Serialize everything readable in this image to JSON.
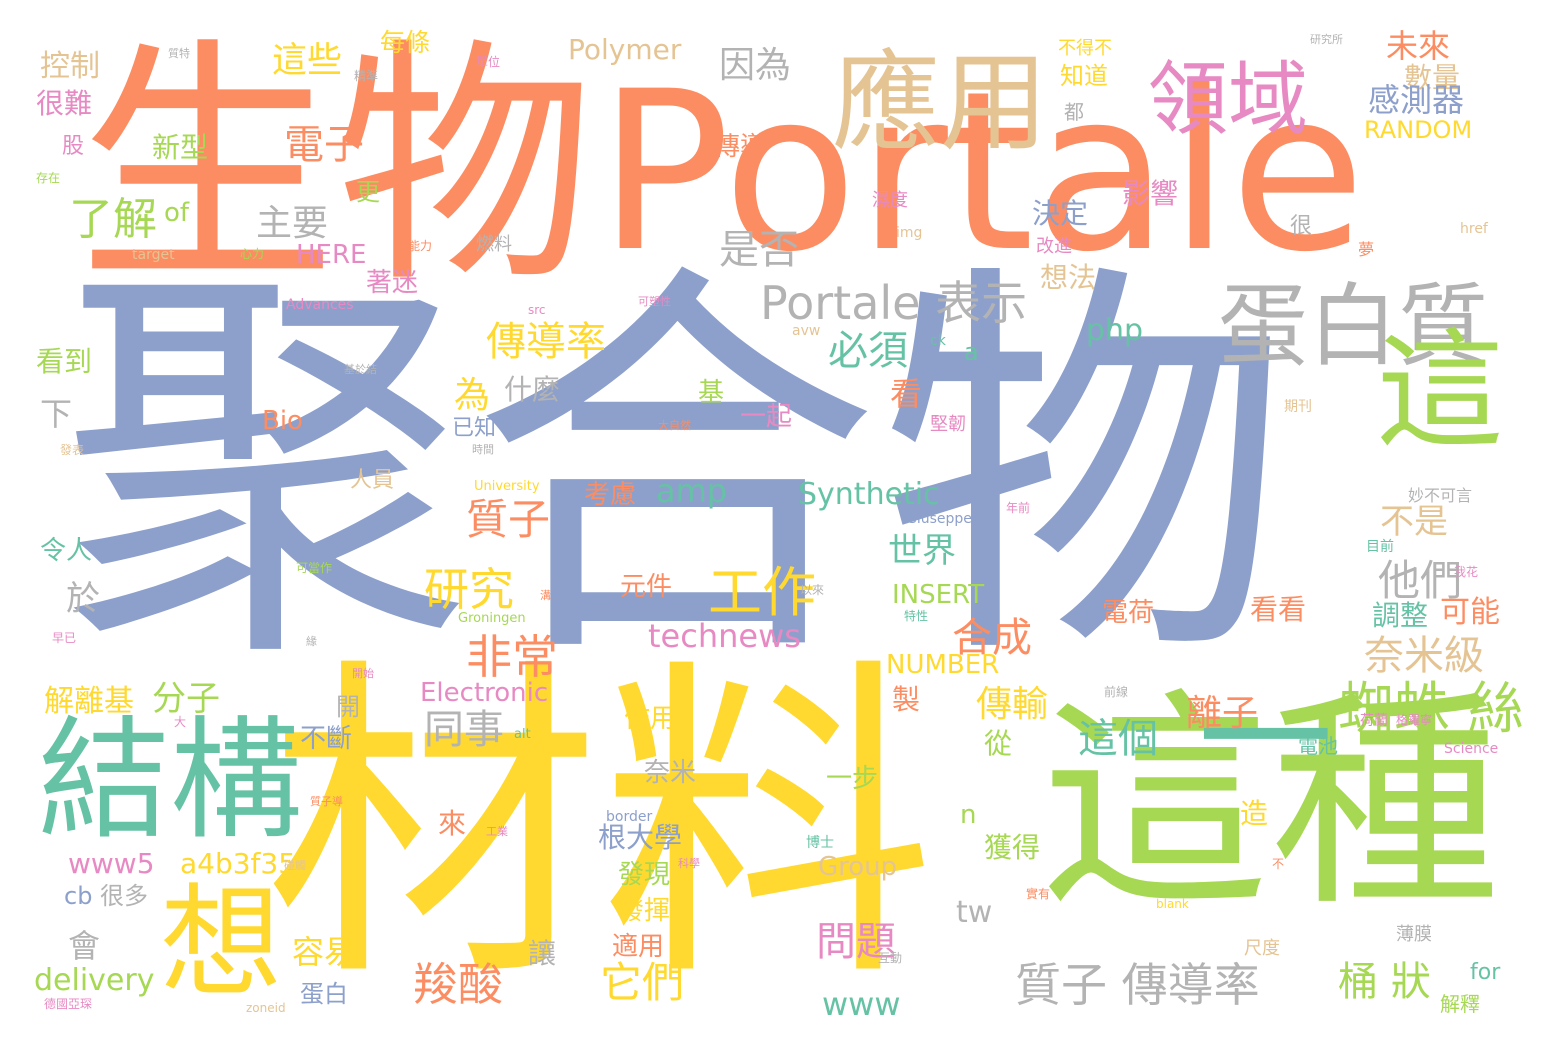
{
  "palette": {
    "orange": "#fc8d62",
    "blue": "#8da0cb",
    "yellow": "#ffd92f",
    "green": "#66c2a5",
    "lime": "#a6d854",
    "pink": "#e78ac3",
    "tan": "#e5c494",
    "gray": "#b3b3b3"
  },
  "words": [
    {
      "text": "聚合物",
      "color": "#8da0cb"
    },
    {
      "text": "生物",
      "color": "#fc8d62"
    },
    {
      "text": "Portale",
      "color": "#fc8d62"
    },
    {
      "text": "材料",
      "color": "#ffd92f"
    },
    {
      "text": "這種",
      "color": "#a6d854"
    },
    {
      "text": "結構",
      "color": "#66c2a5"
    },
    {
      "text": "應用",
      "color": "#e5c494"
    },
    {
      "text": "領域",
      "color": "#e78ac3"
    },
    {
      "text": "蛋白質",
      "color": "#b3b3b3"
    },
    {
      "text": "這",
      "color": "#a6d854"
    },
    {
      "text": "想",
      "color": "#ffd92f"
    },
    {
      "text": "一",
      "color": "#66c2a5"
    },
    {
      "text": "Portale 表示",
      "color": "#b3b3b3"
    },
    {
      "text": "質子 傳導率",
      "color": "#b3b3b3"
    },
    {
      "text": "蜘蛛 絲",
      "color": "#a6d854"
    },
    {
      "text": "工作",
      "color": "#ffd92f"
    },
    {
      "text": "研究",
      "color": "#ffd92f"
    },
    {
      "text": "非常",
      "color": "#fc8d62"
    },
    {
      "text": "羧酸",
      "color": "#fc8d62"
    },
    {
      "text": "了解",
      "color": "#a6d854"
    },
    {
      "text": "電子",
      "color": "#fc8d62"
    },
    {
      "text": "主要",
      "color": "#b3b3b3"
    },
    {
      "text": "這些",
      "color": "#ffd92f"
    },
    {
      "text": "控制",
      "color": "#e5c494"
    },
    {
      "text": "每條",
      "color": "#ffd92f"
    },
    {
      "text": "Polymer",
      "color": "#e5c494"
    },
    {
      "text": "因為",
      "color": "#b3b3b3"
    },
    {
      "text": "未來",
      "color": "#fc8d62"
    },
    {
      "text": "數量",
      "color": "#e5c494"
    },
    {
      "text": "感測器",
      "color": "#8da0cb"
    },
    {
      "text": "RANDOM",
      "color": "#ffd92f"
    },
    {
      "text": "是否",
      "color": "#b3b3b3"
    },
    {
      "text": "傳導率",
      "color": "#ffd92f"
    },
    {
      "text": "必須",
      "color": "#66c2a5"
    },
    {
      "text": "php",
      "color": "#66c2a5"
    },
    {
      "text": "amp",
      "color": "#66c2a5"
    },
    {
      "text": "Synthetic",
      "color": "#66c2a5"
    },
    {
      "text": "質子",
      "color": "#fc8d62"
    },
    {
      "text": "世界",
      "color": "#66c2a5"
    },
    {
      "text": "technews",
      "color": "#e78ac3"
    },
    {
      "text": "合成",
      "color": "#fc8d62"
    },
    {
      "text": "他們",
      "color": "#b3b3b3"
    },
    {
      "text": "不是",
      "color": "#e5c494"
    },
    {
      "text": "奈米級",
      "color": "#e5c494"
    },
    {
      "text": "這個",
      "color": "#66c2a5"
    },
    {
      "text": "傳輸",
      "color": "#ffd92f"
    },
    {
      "text": "離子",
      "color": "#fc8d62"
    },
    {
      "text": "問題",
      "color": "#e78ac3"
    },
    {
      "text": "它們",
      "color": "#ffd92f"
    },
    {
      "text": "桶 狀",
      "color": "#a6d854"
    },
    {
      "text": "www",
      "color": "#66c2a5"
    },
    {
      "text": "www5",
      "color": "#e78ac3"
    },
    {
      "text": "a4b3f35b",
      "color": "#ffd92f"
    },
    {
      "text": "delivery",
      "color": "#a6d854"
    },
    {
      "text": "會",
      "color": "#b3b3b3"
    },
    {
      "text": "容易",
      "color": "#ffd92f"
    },
    {
      "text": "同事",
      "color": "#b3b3b3"
    },
    {
      "text": "分子",
      "color": "#a6d854"
    },
    {
      "text": "解離基",
      "color": "#ffd92f"
    },
    {
      "text": "很難",
      "color": "#e78ac3"
    },
    {
      "text": "新型",
      "color": "#a6d854"
    },
    {
      "text": "股",
      "color": "#e78ac3"
    },
    {
      "text": "of",
      "color": "#a6d854"
    },
    {
      "text": "HERE",
      "color": "#e78ac3"
    },
    {
      "text": "著迷",
      "color": "#e78ac3"
    },
    {
      "text": "看到",
      "color": "#a6d854"
    },
    {
      "text": "下",
      "color": "#b3b3b3"
    },
    {
      "text": "為",
      "color": "#ffd92f"
    },
    {
      "text": "什麼",
      "color": "#b3b3b3"
    },
    {
      "text": "Bio",
      "color": "#fc8d62"
    },
    {
      "text": "基",
      "color": "#a6d854"
    },
    {
      "text": "一起",
      "color": "#e78ac3"
    },
    {
      "text": "看",
      "color": "#fc8d62"
    },
    {
      "text": "a",
      "color": "#66c2a5"
    },
    {
      "text": "已知",
      "color": "#8da0cb"
    },
    {
      "text": "決定",
      "color": "#8da0cb"
    },
    {
      "text": "想法",
      "color": "#e5c494"
    },
    {
      "text": "影響",
      "color": "#e78ac3"
    },
    {
      "text": "知道",
      "color": "#ffd92f"
    },
    {
      "text": "傳導",
      "color": "#fc8d62"
    },
    {
      "text": "可能",
      "color": "#fc8d62"
    },
    {
      "text": "調整",
      "color": "#66c2a5"
    },
    {
      "text": "看看",
      "color": "#fc8d62"
    },
    {
      "text": "電荷",
      "color": "#fc8d62"
    },
    {
      "text": "INSERT",
      "color": "#a6d854"
    },
    {
      "text": "NUMBER",
      "color": "#ffd92f"
    },
    {
      "text": "Electronic",
      "color": "#e78ac3"
    },
    {
      "text": "元件",
      "color": "#fc8d62"
    },
    {
      "text": "人員",
      "color": "#e5c494"
    },
    {
      "text": "考慮",
      "color": "#fc8d62"
    },
    {
      "text": "於",
      "color": "#b3b3b3"
    },
    {
      "text": "令人",
      "color": "#66c2a5"
    },
    {
      "text": "作用",
      "color": "#ffd92f"
    },
    {
      "text": "奈米",
      "color": "#b3b3b3"
    },
    {
      "text": "一步",
      "color": "#a6d854"
    },
    {
      "text": "不斷",
      "color": "#8da0cb"
    },
    {
      "text": "開",
      "color": "#b3b3b3"
    },
    {
      "text": "來",
      "color": "#fc8d62"
    },
    {
      "text": "根大學",
      "color": "#8da0cb"
    },
    {
      "text": "發現",
      "color": "#a6d854"
    },
    {
      "text": "發揮",
      "color": "#ffd92f"
    },
    {
      "text": "適用",
      "color": "#fc8d62"
    },
    {
      "text": "Group",
      "color": "#e5c494"
    },
    {
      "text": "製",
      "color": "#fc8d62"
    },
    {
      "text": "從",
      "color": "#a6d854"
    },
    {
      "text": "n",
      "color": "#a6d854"
    },
    {
      "text": "獲得",
      "color": "#a6d854"
    },
    {
      "text": "tw",
      "color": "#b3b3b3"
    },
    {
      "text": "造",
      "color": "#ffd92f"
    },
    {
      "text": "cb",
      "color": "#8da0cb"
    },
    {
      "text": "很多",
      "color": "#b3b3b3"
    },
    {
      "text": "蛋白",
      "color": "#8da0cb"
    },
    {
      "text": "讓",
      "color": "#b3b3b3"
    },
    {
      "text": "for",
      "color": "#66c2a5"
    },
    {
      "text": "解釋",
      "color": "#a6d854"
    },
    {
      "text": "薄膜",
      "color": "#b3b3b3"
    },
    {
      "text": "尺度",
      "color": "#e5c494"
    },
    {
      "text": "更",
      "color": "#a6d854"
    },
    {
      "text": "都",
      "color": "#b3b3b3"
    },
    {
      "text": "很",
      "color": "#b3b3b3"
    },
    {
      "text": "燃料",
      "color": "#b3b3b3"
    },
    {
      "text": "改進",
      "color": "#e78ac3"
    },
    {
      "text": "濕度",
      "color": "#e78ac3"
    },
    {
      "text": "不得不",
      "color": "#ffd92f"
    },
    {
      "text": "Science",
      "color": "#e78ac3"
    },
    {
      "text": "電池",
      "color": "#66c2a5"
    },
    {
      "text": "目前",
      "color": "#66c2a5"
    },
    {
      "text": "期刊",
      "color": "#e5c494"
    },
    {
      "text": "堅韌",
      "color": "#e78ac3"
    },
    {
      "text": "妙不可言",
      "color": "#b3b3b3"
    },
    {
      "text": "Giuseppe",
      "color": "#8da0cb"
    },
    {
      "text": "University",
      "color": "#ffd92f"
    },
    {
      "text": "Groningen",
      "color": "#a6d854"
    },
    {
      "text": "Advances",
      "color": "#e78ac3"
    },
    {
      "text": "blank",
      "color": "#ffd92f"
    },
    {
      "text": "href",
      "color": "#e5c494"
    },
    {
      "text": "img",
      "color": "#e5c494"
    },
    {
      "text": "target",
      "color": "#e5c494"
    },
    {
      "text": "src",
      "color": "#e78ac3"
    },
    {
      "text": "alt",
      "color": "#66c2a5"
    },
    {
      "text": "border",
      "color": "#8da0cb"
    },
    {
      "text": "zoneid",
      "color": "#e5c494"
    },
    {
      "text": "avw",
      "color": "#e5c494"
    },
    {
      "text": "ck",
      "color": "#66c2a5"
    },
    {
      "text": "夢",
      "color": "#fc8d62"
    },
    {
      "text": "不",
      "color": "#fc8d62"
    },
    {
      "text": "研究所",
      "color": "#b3b3b3"
    },
    {
      "text": "質子導",
      "color": "#fc8d62"
    },
    {
      "text": "存在",
      "color": "#a6d854"
    },
    {
      "text": "心力",
      "color": "#a6d854"
    },
    {
      "text": "能力",
      "color": "#fc8d62"
    },
    {
      "text": "博士",
      "color": "#66c2a5"
    },
    {
      "text": "精準",
      "color": "#b3b3b3"
    },
    {
      "text": "單位",
      "color": "#e78ac3"
    },
    {
      "text": "質特",
      "color": "#b3b3b3"
    },
    {
      "text": "可塑性",
      "color": "#e78ac3"
    },
    {
      "text": "年前",
      "color": "#e78ac3"
    },
    {
      "text": "以來",
      "color": "#b3b3b3"
    },
    {
      "text": "我花",
      "color": "#e78ac3"
    },
    {
      "text": "特性",
      "color": "#66c2a5"
    },
    {
      "text": "緣",
      "color": "#b3b3b3"
    },
    {
      "text": "荷蘭",
      "color": "#e78ac3"
    },
    {
      "text": "格羅寧",
      "color": "#e78ac3"
    },
    {
      "text": "基於結",
      "color": "#b3b3b3"
    },
    {
      "text": "大自然",
      "color": "#fc8d62"
    },
    {
      "text": "溝",
      "color": "#fc8d62"
    },
    {
      "text": "早已",
      "color": "#e78ac3"
    },
    {
      "text": "時間",
      "color": "#b3b3b3"
    },
    {
      "text": "可當作",
      "color": "#a6d854"
    },
    {
      "text": "開始",
      "color": "#e78ac3"
    },
    {
      "text": "前線",
      "color": "#b3b3b3"
    },
    {
      "text": "德國亞琛",
      "color": "#e78ac3"
    },
    {
      "text": "互動",
      "color": "#b3b3b3"
    },
    {
      "text": "實有",
      "color": "#fc8d62"
    },
    {
      "text": "工業",
      "color": "#e78ac3"
    },
    {
      "text": "科學",
      "color": "#e78ac3"
    },
    {
      "text": "發表",
      "color": "#e5c494"
    },
    {
      "text": "碰觸",
      "color": "#e5c494"
    },
    {
      "text": "大",
      "color": "#e78ac3"
    }
  ]
}
